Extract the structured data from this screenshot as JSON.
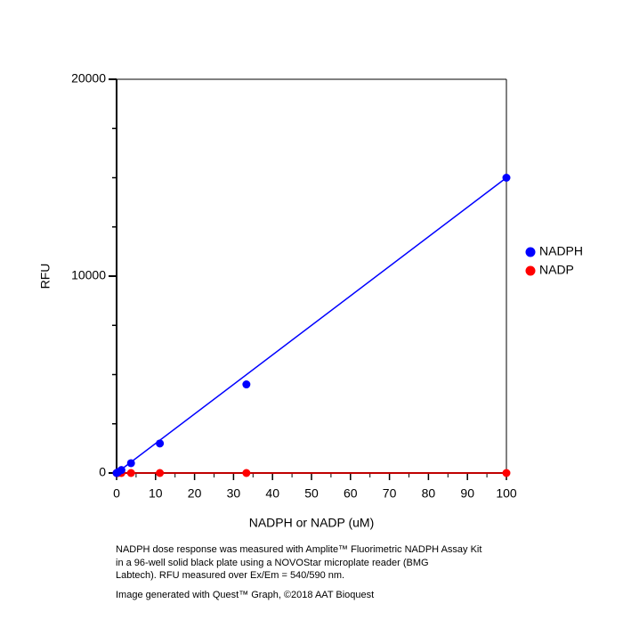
{
  "chart_data": {
    "type": "scatter",
    "x_label": "NADPH or NADP (uM)",
    "y_label": "RFU",
    "xlim": [
      0,
      100
    ],
    "ylim": [
      0,
      20000
    ],
    "xticks": [
      0,
      10,
      20,
      30,
      40,
      50,
      60,
      70,
      80,
      90,
      100
    ],
    "xminor_ticks": [
      5,
      15,
      25,
      35,
      45,
      55,
      65,
      75,
      85,
      95
    ],
    "yticks": [
      0,
      10000,
      20000
    ],
    "yminor_ticks": [
      2500,
      5000,
      7500,
      12500,
      15000,
      17500
    ],
    "x": [
      0,
      0.41,
      1.23,
      3.7,
      11.1,
      33.3,
      100
    ],
    "fit_x": [
      0,
      100
    ],
    "series": [
      {
        "name": "NADPH",
        "color": "#0000ff",
        "values": [
          0,
          50,
          150,
          500,
          1500,
          4500,
          15000
        ],
        "fit_values": [
          0,
          15000
        ]
      },
      {
        "name": "NADP",
        "color": "#ff0000",
        "values": [
          0,
          0,
          0,
          0,
          0,
          0,
          0
        ],
        "fit_values": [
          0,
          0
        ]
      }
    ]
  },
  "footnote": [
    "NADPH dose response was measured with Amplite™ Fluorimetric NADPH Assay Kit",
    "in a 96-well solid black plate using a NOVOStar microplate reader (BMG",
    "Labtech). RFU measured over Ex/Em = 540/590 nm.",
    "Image generated with Quest™ Graph, ©2018 AAT Bioquest"
  ]
}
